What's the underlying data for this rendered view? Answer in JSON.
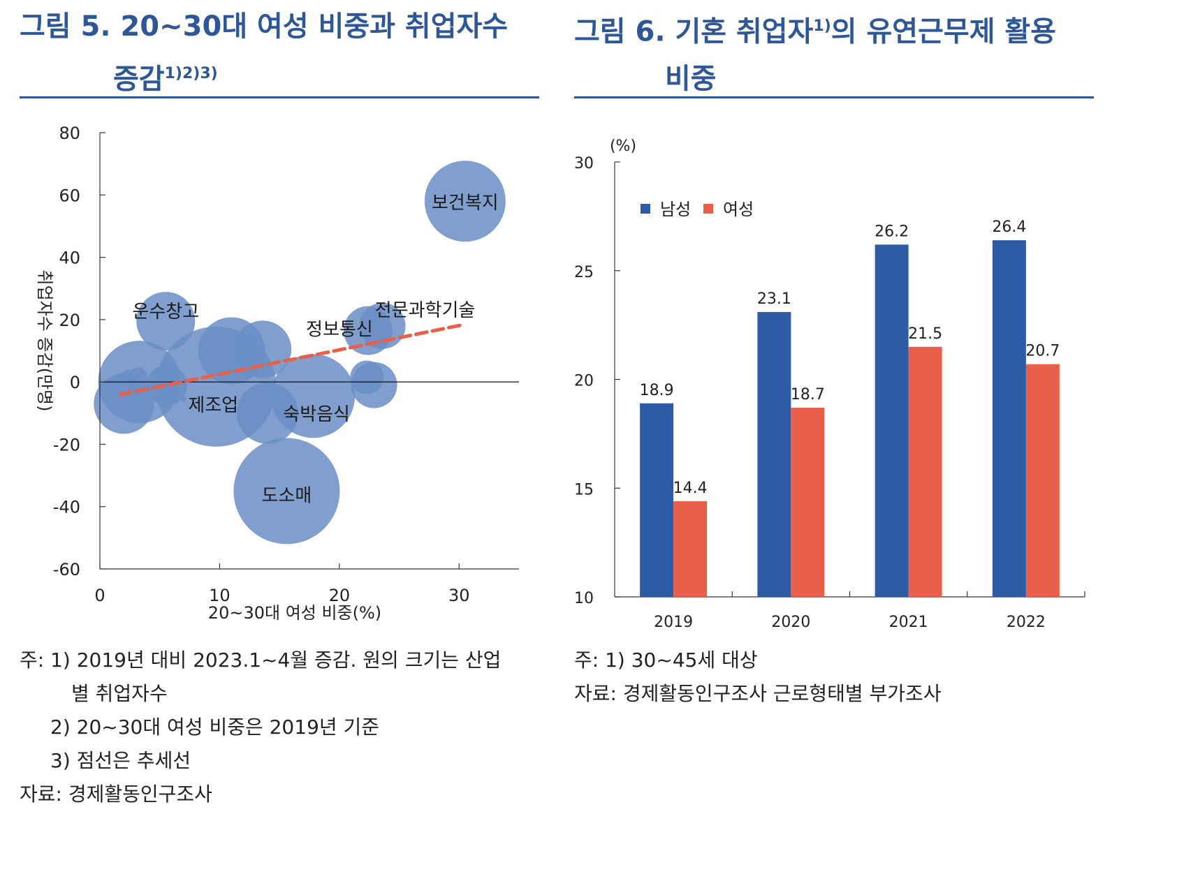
{
  "fig5": {
    "title_line1": "그림 5. 20~30대 여성 비중과 취업자수",
    "title_line2": "증감",
    "title_sup": "1)2)3)",
    "notes": [
      "주: 1) 2019년 대비 2023.1~4월 증감. 원의 크기는 산업",
      "별 취업자수",
      "2) 20~30대 여성 비중은 2019년 기준",
      "3) 점선은 추세선",
      "자료: 경제활동인구조사"
    ]
  },
  "fig6": {
    "title_line1": "그림 6. 기혼 취업자",
    "title_sup": "1)",
    "title_line1_rest": "의 유연근무제 활용",
    "title_line2": "비중",
    "notes": [
      "주: 1) 30~45세 대상",
      "자료: 경제활동인구조사 근로형태별 부가조사"
    ]
  },
  "chart_data": [
    {
      "type": "scatter",
      "title": "",
      "xlabel": "20~30대 여성 비중(%)",
      "ylabel": "취업자수 증감(만명)",
      "xlim": [
        0,
        35
      ],
      "ylim": [
        -60,
        80
      ],
      "xticks": [
        0,
        10,
        20,
        30
      ],
      "yticks": [
        80,
        60,
        40,
        20,
        0,
        -20,
        -40,
        -60
      ],
      "bubble_color": "#6A8EC6",
      "trend_color": "#E8604A",
      "trendline": {
        "x": [
          1.7,
          30.5
        ],
        "y": [
          -4,
          18.5
        ],
        "style": "dashed"
      },
      "points": [
        {
          "label": "보건복지",
          "x": 30.5,
          "y": 58,
          "size": 58
        },
        {
          "label": "운수창고",
          "x": 5.5,
          "y": 19.5,
          "size": 42
        },
        {
          "label": "제조업",
          "x": 9.7,
          "y": -1.5,
          "size": 86
        },
        {
          "label": "숙박음식",
          "x": 17.8,
          "y": -4.5,
          "size": 60
        },
        {
          "label": "도소매",
          "x": 15.6,
          "y": -35,
          "size": 76
        },
        {
          "label": "정보통신",
          "x": 22.4,
          "y": 16.5,
          "size": 35
        },
        {
          "label": "전문과학기술",
          "x": 23.6,
          "y": 18,
          "size": 33
        },
        {
          "label": "",
          "x": 3.3,
          "y": 0,
          "size": 59
        },
        {
          "label": "",
          "x": 2.0,
          "y": -7,
          "size": 43
        },
        {
          "label": "",
          "x": 11.0,
          "y": 10,
          "size": 48
        },
        {
          "label": "",
          "x": 13.6,
          "y": 10.5,
          "size": 41
        },
        {
          "label": "",
          "x": 14.0,
          "y": -10,
          "size": 44
        },
        {
          "label": "",
          "x": 5.6,
          "y": -1,
          "size": 29
        },
        {
          "label": "",
          "x": 22.9,
          "y": -1,
          "size": 33
        },
        {
          "label": "",
          "x": 22.3,
          "y": 1.5,
          "size": 24
        },
        {
          "label": "",
          "x": 3.2,
          "y": 1.5,
          "size": 14
        },
        {
          "label": "",
          "x": 2.4,
          "y": 1.5,
          "size": 11
        },
        {
          "label": "",
          "x": 1.7,
          "y": 1.0,
          "size": 8
        },
        {
          "label": "",
          "x": 7.0,
          "y": -5.5,
          "size": 4
        }
      ]
    },
    {
      "type": "bar",
      "title": "",
      "unit_label": "(%)",
      "categories": [
        "2019",
        "2020",
        "2021",
        "2022"
      ],
      "ylim": [
        10,
        30
      ],
      "yticks": [
        30,
        25,
        20,
        15,
        10
      ],
      "series": [
        {
          "name": "남성",
          "color": "#2E5CA4",
          "values": [
            18.9,
            23.1,
            26.2,
            26.4
          ]
        },
        {
          "name": "여성",
          "color": "#E8604A",
          "values": [
            14.4,
            18.7,
            21.5,
            20.7
          ]
        }
      ],
      "legend": "top-left"
    }
  ]
}
